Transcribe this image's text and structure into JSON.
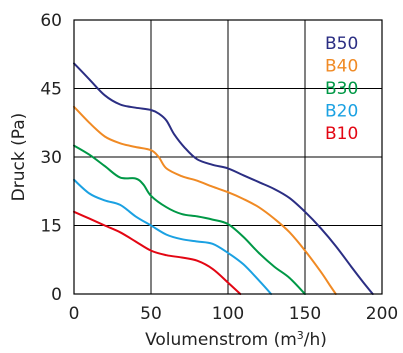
{
  "chart_data": {
    "type": "line",
    "title": "",
    "xlabel_main": "Volumenstrom (m",
    "xlabel_sup": "3",
    "xlabel_tail": "/h)",
    "ylabel": "Druck (Pa)",
    "xlim": [
      0,
      200
    ],
    "ylim": [
      0,
      60
    ],
    "x_ticks": [
      "0",
      "50",
      "100",
      "150",
      "200"
    ],
    "y_ticks": [
      "0",
      "15",
      "30",
      "45",
      "60"
    ],
    "grid": true,
    "legend_position": "top-right",
    "series": [
      {
        "name": "B50",
        "color": "#2B2E83",
        "points": [
          [
            0,
            50.5
          ],
          [
            10,
            47
          ],
          [
            20,
            43.5
          ],
          [
            30,
            41.5
          ],
          [
            40,
            40.8
          ],
          [
            50,
            40.3
          ],
          [
            55,
            39.5
          ],
          [
            60,
            38
          ],
          [
            65,
            35
          ],
          [
            72,
            32
          ],
          [
            80,
            29.5
          ],
          [
            90,
            28.3
          ],
          [
            100,
            27.5
          ],
          [
            110,
            26
          ],
          [
            120,
            24.5
          ],
          [
            130,
            23
          ],
          [
            140,
            21
          ],
          [
            150,
            18
          ],
          [
            160,
            14.5
          ],
          [
            170,
            10.5
          ],
          [
            180,
            6
          ],
          [
            188,
            2.5
          ],
          [
            194,
            0
          ]
        ]
      },
      {
        "name": "B40",
        "color": "#F08A24",
        "points": [
          [
            0,
            41
          ],
          [
            10,
            37.5
          ],
          [
            20,
            34.5
          ],
          [
            30,
            33
          ],
          [
            40,
            32.2
          ],
          [
            50,
            31.5
          ],
          [
            55,
            30
          ],
          [
            60,
            27.5
          ],
          [
            70,
            25.8
          ],
          [
            80,
            24.8
          ],
          [
            90,
            23.5
          ],
          [
            100,
            22.3
          ],
          [
            110,
            20.8
          ],
          [
            120,
            19
          ],
          [
            130,
            16.5
          ],
          [
            140,
            13.5
          ],
          [
            150,
            9.5
          ],
          [
            160,
            5
          ],
          [
            166,
            2
          ],
          [
            170,
            0
          ]
        ]
      },
      {
        "name": "B30",
        "color": "#009846",
        "points": [
          [
            0,
            32.5
          ],
          [
            10,
            30.5
          ],
          [
            20,
            28
          ],
          [
            30,
            25.5
          ],
          [
            40,
            25.3
          ],
          [
            45,
            24
          ],
          [
            50,
            21.5
          ],
          [
            60,
            19
          ],
          [
            70,
            17.5
          ],
          [
            80,
            17
          ],
          [
            90,
            16.3
          ],
          [
            100,
            15.3
          ],
          [
            110,
            12.5
          ],
          [
            120,
            9
          ],
          [
            130,
            6
          ],
          [
            140,
            3.5
          ],
          [
            150,
            0
          ]
        ]
      },
      {
        "name": "B20",
        "color": "#1BA1E2",
        "points": [
          [
            0,
            25
          ],
          [
            10,
            22
          ],
          [
            20,
            20.5
          ],
          [
            30,
            19.5
          ],
          [
            40,
            17
          ],
          [
            50,
            15
          ],
          [
            60,
            13
          ],
          [
            70,
            12
          ],
          [
            80,
            11.5
          ],
          [
            90,
            11
          ],
          [
            100,
            9
          ],
          [
            110,
            6.5
          ],
          [
            120,
            3
          ],
          [
            128,
            0
          ]
        ]
      },
      {
        "name": "B10",
        "color": "#E30613",
        "points": [
          [
            0,
            18
          ],
          [
            10,
            16.5
          ],
          [
            20,
            15
          ],
          [
            30,
            13.5
          ],
          [
            40,
            11.5
          ],
          [
            50,
            9.5
          ],
          [
            60,
            8.5
          ],
          [
            70,
            8
          ],
          [
            80,
            7.3
          ],
          [
            90,
            5.5
          ],
          [
            100,
            2.5
          ],
          [
            108,
            0
          ]
        ]
      }
    ]
  }
}
